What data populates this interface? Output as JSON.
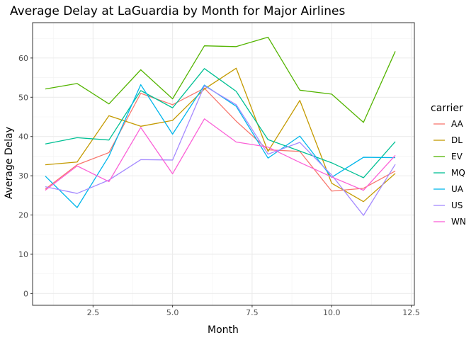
{
  "chart_data": {
    "type": "line",
    "title": "Average Delay at LaGuardia by Month for Major Airlines",
    "xlabel": "Month",
    "ylabel": "Average Delay",
    "xlim": [
      0.6,
      12.6
    ],
    "ylim": [
      -3,
      69
    ],
    "x_ticks": [
      2.5,
      5.0,
      7.5,
      10.0,
      12.5
    ],
    "x_tick_labels": [
      "2.5",
      "5.0",
      "7.5",
      "10.0",
      "12.5"
    ],
    "y_ticks": [
      0,
      10,
      20,
      30,
      40,
      50,
      60
    ],
    "y_tick_labels": [
      "0",
      "10",
      "20",
      "30",
      "40",
      "50",
      "60"
    ],
    "grid": true,
    "theme": "bw",
    "legend_title": "carrier",
    "legend_position": "right",
    "x": [
      1,
      2,
      3,
      4,
      5,
      6,
      7,
      8,
      9,
      10,
      11,
      12
    ],
    "series": [
      {
        "name": "AA",
        "color": "#F8766D",
        "values": [
          26.6,
          32.8,
          35.9,
          51.0,
          48.1,
          52.3,
          43.9,
          36.6,
          36.2,
          26.1,
          26.8,
          31.2
        ]
      },
      {
        "name": "DL",
        "color": "#C49A00",
        "values": [
          32.8,
          33.5,
          45.3,
          42.6,
          44.1,
          52.1,
          57.4,
          36.2,
          49.2,
          28.1,
          23.4,
          30.6
        ]
      },
      {
        "name": "EV",
        "color": "#53B400",
        "values": [
          52.1,
          53.5,
          48.3,
          57.0,
          49.6,
          63.1,
          62.9,
          65.3,
          51.8,
          50.8,
          43.6,
          61.7
        ]
      },
      {
        "name": "MQ",
        "color": "#00C094",
        "values": [
          38.1,
          39.7,
          39.1,
          51.7,
          47.3,
          57.3,
          51.5,
          39.2,
          36.3,
          33.3,
          29.5,
          38.7
        ]
      },
      {
        "name": "UA",
        "color": "#00B6EB",
        "values": [
          29.9,
          21.9,
          35.0,
          53.2,
          40.6,
          53.1,
          47.7,
          34.5,
          40.1,
          29.6,
          34.7,
          34.6
        ]
      },
      {
        "name": "US",
        "color": "#A58AFF",
        "values": [
          27.2,
          25.5,
          28.9,
          34.1,
          34.0,
          52.9,
          48.1,
          35.5,
          38.5,
          30.2,
          19.9,
          32.9
        ]
      },
      {
        "name": "WN",
        "color": "#FB61D7",
        "values": [
          26.3,
          32.5,
          28.5,
          42.3,
          30.5,
          44.5,
          38.6,
          37.3,
          33.4,
          29.7,
          26.3,
          35.2
        ]
      }
    ]
  }
}
